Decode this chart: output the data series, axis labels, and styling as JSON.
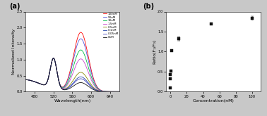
{
  "panel_a": {
    "title": "(a)",
    "xlabel": "Wavelength(nm)",
    "ylabel": "Normalized Intensity",
    "xlim": [
      460,
      660
    ],
    "ylim": [
      0,
      2.5
    ],
    "xticks": [
      480,
      520,
      560,
      600,
      640
    ],
    "yticks": [
      0.0,
      0.5,
      1.0,
      1.5,
      2.0,
      2.5
    ],
    "curves": [
      {
        "label": "100nM",
        "color": "#ff0000",
        "peak1_x": 520,
        "peak1_y": 1.0,
        "peak2_x": 578,
        "peak2_y": 1.85,
        "baseline": 0.38
      },
      {
        "label": "50nM",
        "color": "#5555dd",
        "peak1_x": 520,
        "peak1_y": 1.0,
        "peak2_x": 578,
        "peak2_y": 1.65,
        "baseline": 0.38
      },
      {
        "label": "10nM",
        "color": "#00bb44",
        "peak1_x": 520,
        "peak1_y": 1.0,
        "peak2_x": 578,
        "peak2_y": 1.3,
        "baseline": 0.38
      },
      {
        "label": "1.5nM",
        "color": "#cc44cc",
        "peak1_x": 520,
        "peak1_y": 1.0,
        "peak2_x": 578,
        "peak2_y": 1.02,
        "baseline": 0.38
      },
      {
        "label": "0.5nM",
        "color": "#888800",
        "peak1_x": 520,
        "peak1_y": 1.0,
        "peak2_x": 578,
        "peak2_y": 0.6,
        "baseline": 0.38
      },
      {
        "label": "0.1nM",
        "color": "#2244aa",
        "peak1_x": 520,
        "peak1_y": 1.0,
        "peak2_x": 578,
        "peak2_y": 0.46,
        "baseline": 0.38
      },
      {
        "label": "0.05nM",
        "color": "#4444bb",
        "peak1_x": 520,
        "peak1_y": 1.0,
        "peak2_x": 578,
        "peak2_y": 0.4,
        "baseline": 0.38
      },
      {
        "label": "0nM",
        "color": "#111111",
        "peak1_x": 520,
        "peak1_y": 1.0,
        "peak2_x": 578,
        "peak2_y": 0.28,
        "baseline": 0.38
      }
    ]
  },
  "panel_b": {
    "title": "(b)",
    "xlabel": "Concentration(nM)",
    "ylabel": "Ratio(F₁/F₀)",
    "xlim": [
      -5,
      110
    ],
    "ylim": [
      0.0,
      2.0
    ],
    "xticks": [
      0,
      20,
      40,
      60,
      80,
      100
    ],
    "yticks": [
      0.0,
      0.5,
      1.0,
      1.5,
      2.0
    ],
    "scatter_x": [
      0,
      0.05,
      0.1,
      0.5,
      1.5,
      10,
      50,
      100
    ],
    "scatter_y": [
      0.1,
      0.33,
      0.42,
      0.52,
      1.03,
      1.32,
      1.69,
      1.84
    ],
    "scatter_yerr": [
      0.0,
      0.0,
      0.0,
      0.0,
      0.0,
      0.05,
      0.0,
      0.05
    ],
    "marker": "s",
    "color": "#111111"
  },
  "fig_facecolor": "#c8c8c8",
  "axes_facecolor": "#ffffff"
}
